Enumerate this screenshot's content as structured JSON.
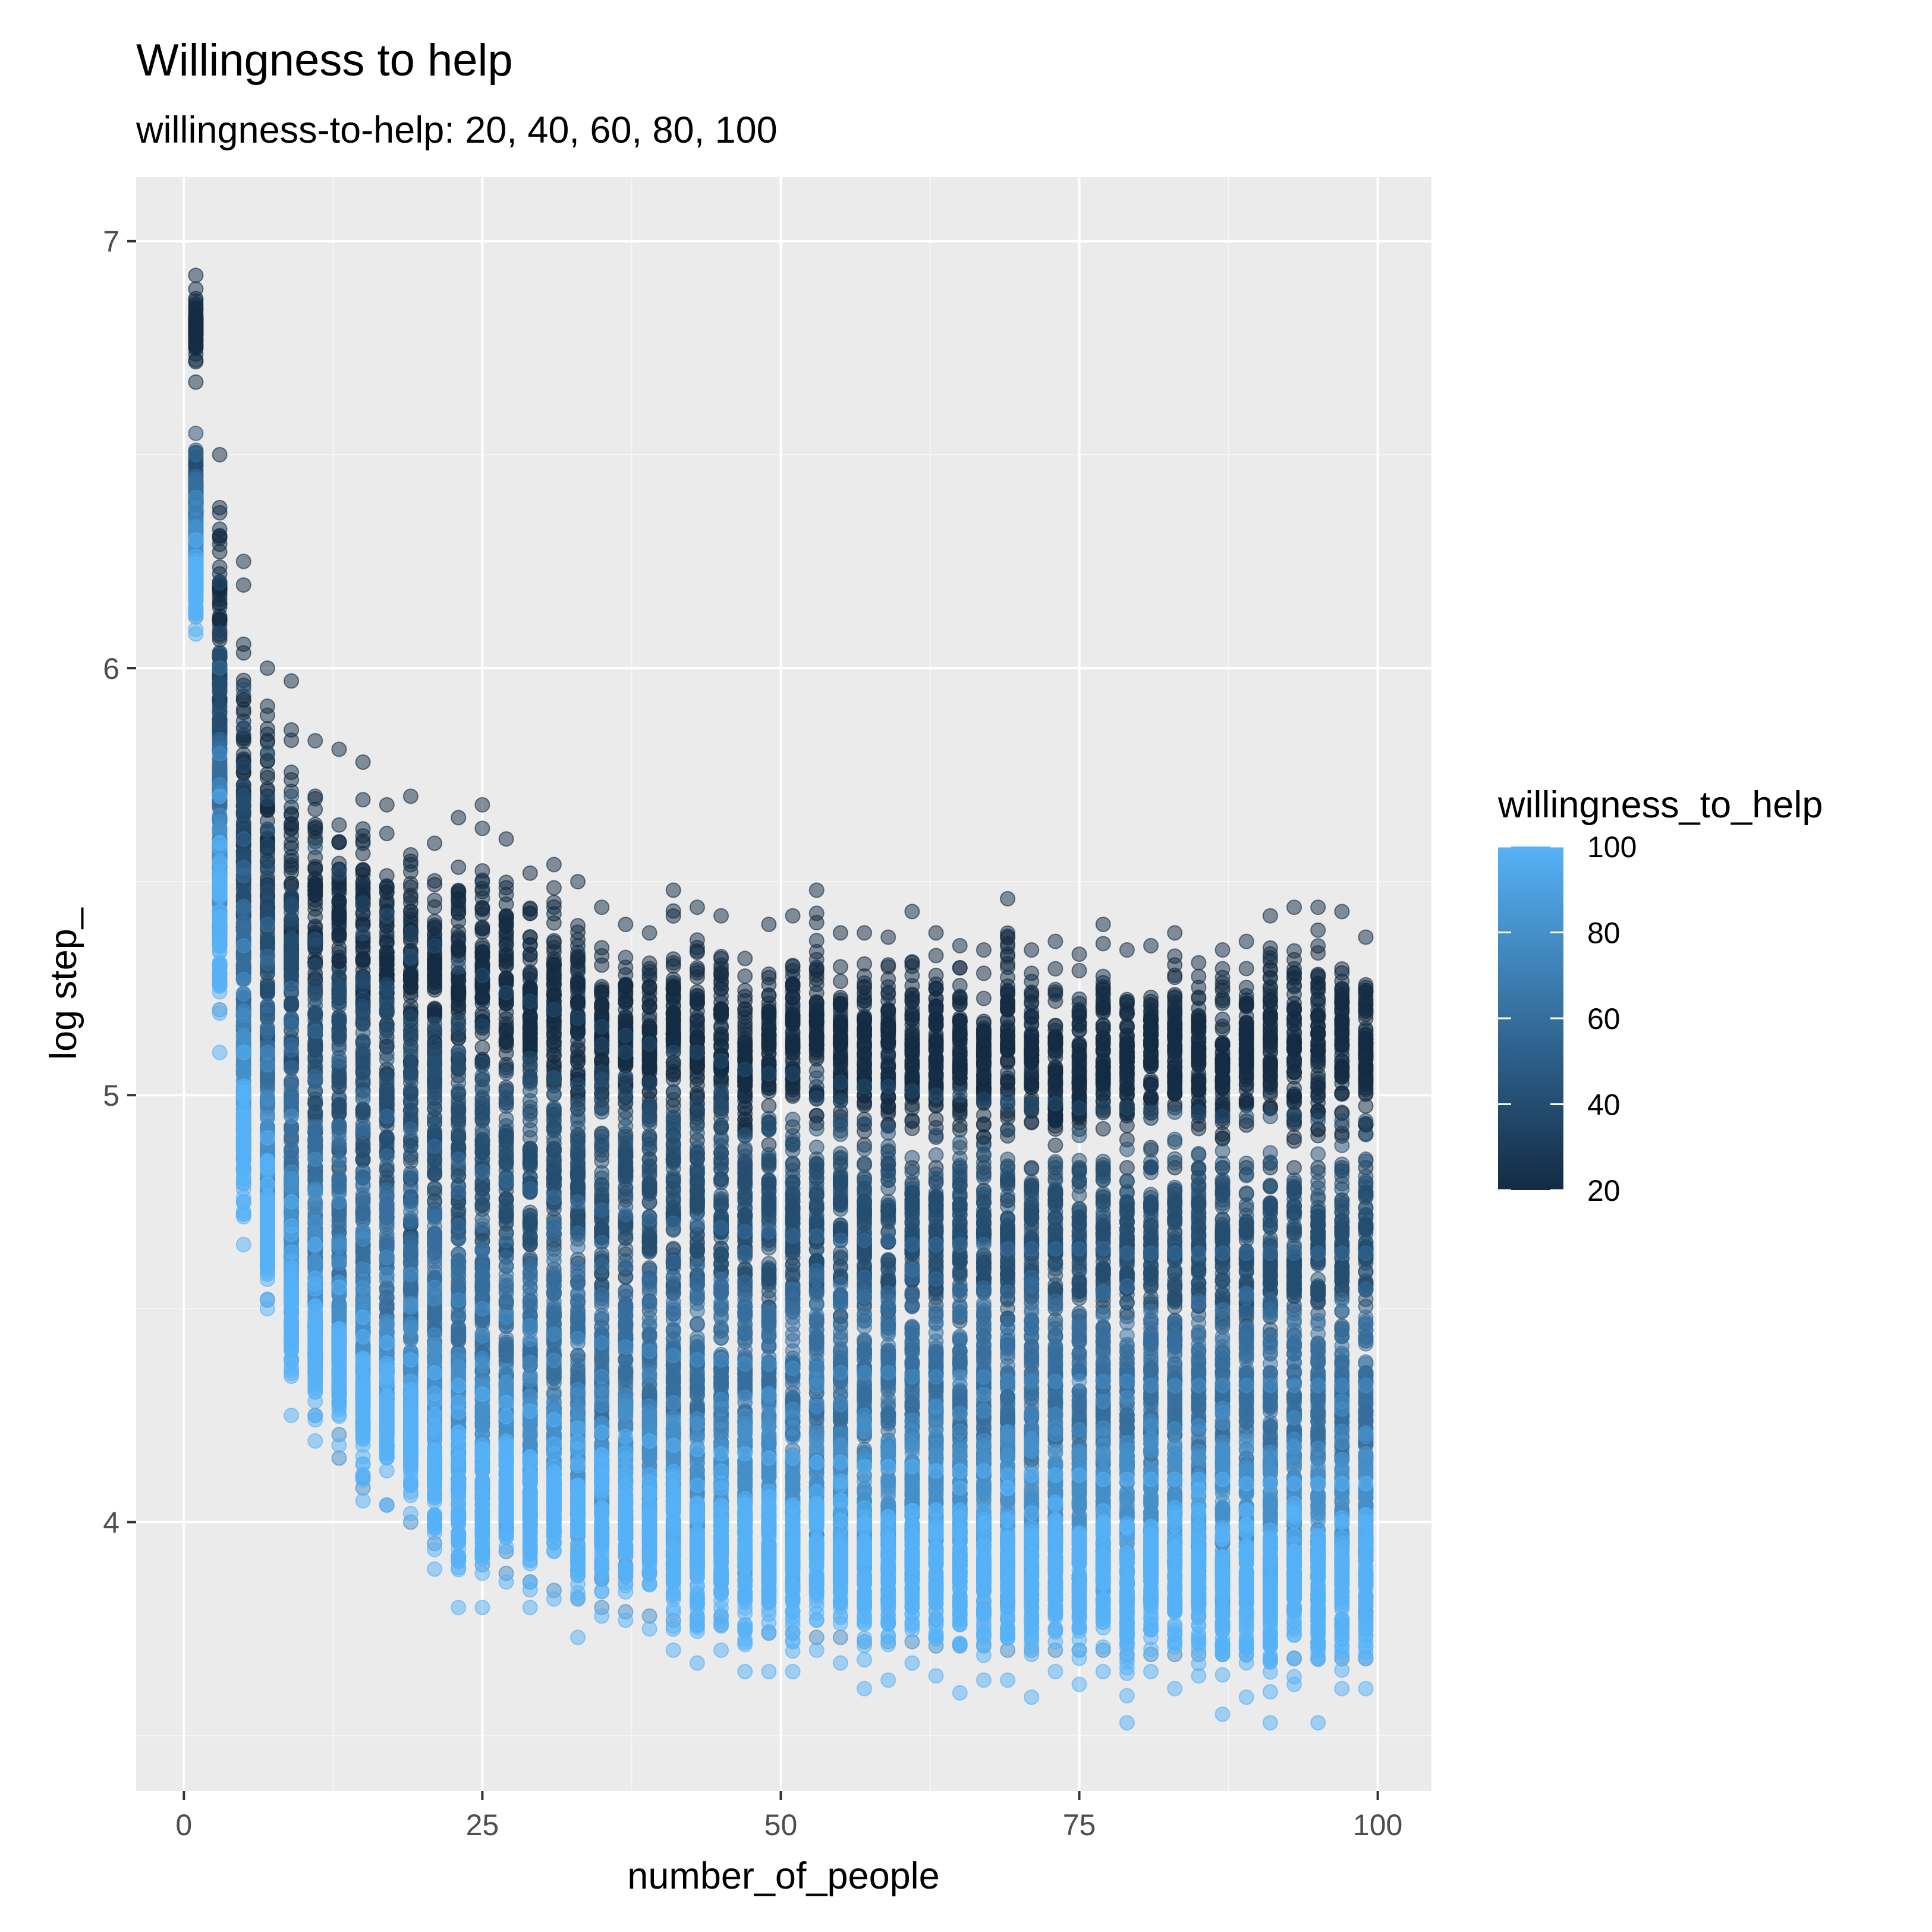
{
  "chart_data": {
    "type": "scatter",
    "title": "Willingness to help",
    "subtitle": "willingness-to-help: 20, 40, 60, 80, 100",
    "xlabel": "number_of_people",
    "ylabel": "log step_",
    "xlim": [
      -4,
      104.5
    ],
    "ylim": [
      3.37,
      7.15
    ],
    "x_ticks": [
      {
        "value": 0,
        "label": "0"
      },
      {
        "value": 25,
        "label": "25"
      },
      {
        "value": 50,
        "label": "50"
      },
      {
        "value": 75,
        "label": "75"
      },
      {
        "value": 100,
        "label": "100"
      }
    ],
    "y_ticks": [
      {
        "value": 4,
        "label": "4"
      },
      {
        "value": 5,
        "label": "5"
      },
      {
        "value": 6,
        "label": "6"
      },
      {
        "value": 7,
        "label": "7"
      }
    ],
    "x_values": [
      1,
      3,
      5,
      7,
      9,
      11,
      13,
      15,
      17,
      19,
      21,
      23,
      25,
      27,
      29,
      31,
      33,
      35,
      37,
      39,
      41,
      43,
      45,
      47,
      49,
      51,
      53,
      55,
      57,
      59,
      61,
      63,
      65,
      67,
      69,
      71,
      73,
      75,
      77,
      79,
      81,
      83,
      85,
      87,
      89,
      91,
      93,
      95,
      97,
      99
    ],
    "grid": true,
    "point_alpha": 0.5,
    "series": [
      {
        "willingness": 20,
        "y_min": [
          6.67,
          5.6,
          5.2,
          5.1,
          5.0,
          4.98,
          4.96,
          4.96,
          4.94,
          4.93,
          4.9,
          4.9,
          4.88,
          4.88,
          4.87,
          4.87,
          4.86,
          4.86,
          4.86,
          4.85,
          4.85,
          4.85,
          4.85,
          4.84,
          4.84,
          4.84,
          4.84,
          4.84,
          4.84,
          4.84,
          4.83,
          4.83,
          4.83,
          4.83,
          4.83,
          4.83,
          4.83,
          4.83,
          4.83,
          4.83,
          4.83,
          4.83,
          4.83,
          4.83,
          4.83,
          4.83,
          4.83,
          4.83,
          4.83,
          4.83
        ],
        "y_max": [
          6.92,
          6.5,
          6.25,
          6.0,
          5.97,
          5.83,
          5.81,
          5.78,
          5.68,
          5.7,
          5.59,
          5.65,
          5.68,
          5.6,
          5.52,
          5.54,
          5.5,
          5.44,
          5.4,
          5.38,
          5.48,
          5.44,
          5.42,
          5.32,
          5.4,
          5.42,
          5.48,
          5.38,
          5.38,
          5.37,
          5.43,
          5.38,
          5.35,
          5.34,
          5.46,
          5.34,
          5.36,
          5.33,
          5.4,
          5.34,
          5.35,
          5.38,
          5.31,
          5.34,
          5.36,
          5.42,
          5.44,
          5.44,
          5.43,
          5.37
        ]
      },
      {
        "willingness": 40,
        "y_min": [
          6.3,
          5.45,
          5.0,
          4.85,
          4.7,
          4.62,
          4.56,
          4.52,
          4.5,
          4.47,
          4.45,
          4.43,
          4.42,
          4.41,
          4.4,
          4.39,
          4.39,
          4.38,
          4.38,
          4.37,
          4.37,
          4.37,
          4.36,
          4.36,
          4.36,
          4.36,
          4.36,
          4.36,
          4.35,
          4.35,
          4.35,
          4.35,
          4.35,
          4.35,
          4.35,
          4.35,
          4.35,
          4.35,
          4.35,
          4.35,
          4.35,
          4.35,
          4.35,
          4.35,
          4.35,
          4.35,
          4.35,
          4.35,
          4.35,
          4.35
        ],
        "y_max": [
          6.55,
          6.2,
          5.95,
          5.8,
          5.7,
          5.58,
          5.52,
          5.45,
          5.42,
          5.38,
          5.35,
          5.3,
          5.28,
          5.24,
          5.22,
          5.2,
          5.18,
          5.16,
          5.14,
          5.12,
          5.1,
          5.1,
          5.08,
          5.06,
          5.05,
          5.05,
          5.04,
          5.03,
          5.02,
          5.02,
          5.01,
          5.0,
          5.0,
          4.99,
          4.99,
          4.98,
          4.98,
          4.97,
          4.97,
          4.97,
          4.96,
          4.96,
          4.96,
          4.95,
          4.95,
          4.95,
          4.95,
          4.94,
          4.94,
          4.94
        ]
      },
      {
        "willingness": 60,
        "y_min": [
          6.2,
          5.3,
          4.85,
          4.6,
          4.45,
          4.35,
          4.28,
          4.22,
          4.18,
          4.15,
          4.12,
          4.1,
          4.08,
          4.06,
          4.05,
          4.04,
          4.03,
          4.02,
          4.01,
          4.0,
          4.0,
          3.99,
          3.99,
          3.98,
          3.98,
          3.98,
          3.97,
          3.97,
          3.97,
          3.97,
          3.96,
          3.96,
          3.96,
          3.96,
          3.96,
          3.96,
          3.96,
          3.95,
          3.95,
          3.95,
          3.95,
          3.95,
          3.95,
          3.95,
          3.95,
          3.95,
          3.95,
          3.95,
          3.95,
          3.95
        ],
        "y_max": [
          6.5,
          6.0,
          5.6,
          5.4,
          5.25,
          5.15,
          5.08,
          5.0,
          4.95,
          4.92,
          4.88,
          4.85,
          4.82,
          4.8,
          4.78,
          4.76,
          4.75,
          4.73,
          4.72,
          4.71,
          4.7,
          4.7,
          4.69,
          4.68,
          4.68,
          4.67,
          4.67,
          4.66,
          4.66,
          4.66,
          4.65,
          4.65,
          4.65,
          4.65,
          4.64,
          4.64,
          4.64,
          4.64,
          4.64,
          4.63,
          4.63,
          4.63,
          4.63,
          4.63,
          4.63,
          4.63,
          4.63,
          4.63,
          4.63,
          4.63
        ]
      },
      {
        "willingness": 80,
        "y_min": [
          6.12,
          5.2,
          4.75,
          4.52,
          4.38,
          4.25,
          4.15,
          4.08,
          4.04,
          4.0,
          3.95,
          3.92,
          3.9,
          3.88,
          3.86,
          3.84,
          3.82,
          3.8,
          3.79,
          3.78,
          3.77,
          3.76,
          3.76,
          3.75,
          3.74,
          3.74,
          3.73,
          3.73,
          3.72,
          3.72,
          3.72,
          3.71,
          3.71,
          3.71,
          3.7,
          3.7,
          3.7,
          3.7,
          3.7,
          3.69,
          3.69,
          3.69,
          3.69,
          3.69,
          3.69,
          3.68,
          3.68,
          3.68,
          3.68,
          3.68
        ],
        "y_max": [
          6.4,
          5.8,
          5.35,
          5.1,
          4.95,
          4.85,
          4.75,
          4.68,
          4.62,
          4.58,
          4.55,
          4.52,
          4.5,
          4.48,
          4.46,
          4.44,
          4.43,
          4.42,
          4.41,
          4.4,
          4.39,
          4.38,
          4.38,
          4.37,
          4.37,
          4.36,
          4.36,
          4.35,
          4.35,
          4.35,
          4.34,
          4.34,
          4.34,
          4.34,
          4.33,
          4.33,
          4.33,
          4.33,
          4.33,
          4.33,
          4.32,
          4.32,
          4.32,
          4.32,
          4.32,
          4.32,
          4.32,
          4.32,
          4.32,
          4.32
        ]
      },
      {
        "willingness": 100,
        "y_min": [
          6.08,
          5.1,
          4.65,
          4.5,
          4.25,
          4.19,
          4.18,
          4.05,
          4.04,
          4.02,
          3.89,
          3.8,
          3.8,
          3.86,
          3.8,
          3.82,
          3.73,
          3.78,
          3.77,
          3.75,
          3.7,
          3.67,
          3.7,
          3.65,
          3.65,
          3.65,
          3.7,
          3.67,
          3.61,
          3.63,
          3.67,
          3.64,
          3.6,
          3.63,
          3.63,
          3.59,
          3.65,
          3.62,
          3.65,
          3.53,
          3.65,
          3.61,
          3.64,
          3.55,
          3.59,
          3.53,
          3.62,
          3.53,
          3.61,
          3.61
        ],
        "y_max": [
          6.3,
          5.7,
          5.1,
          4.9,
          4.75,
          4.65,
          4.55,
          4.48,
          4.42,
          4.38,
          4.35,
          4.32,
          4.3,
          4.28,
          4.26,
          4.24,
          4.22,
          4.21,
          4.2,
          4.19,
          4.18,
          4.17,
          4.16,
          4.16,
          4.15,
          4.15,
          4.14,
          4.14,
          4.13,
          4.13,
          4.13,
          4.12,
          4.12,
          4.12,
          4.11,
          4.11,
          4.11,
          4.11,
          4.1,
          4.1,
          4.1,
          4.1,
          4.1,
          4.1,
          4.09,
          4.09,
          4.09,
          4.09,
          4.09,
          4.09
        ]
      }
    ],
    "legend": {
      "title": "willingness_to_help",
      "position": "right",
      "labels": [
        "100",
        "80",
        "60",
        "40",
        "20"
      ],
      "values": [
        100,
        80,
        60,
        40,
        20
      ],
      "color_low": "#132b43",
      "color_high": "#56b1f7"
    },
    "colors": {
      "panel_background": "#ebebeb",
      "grid_major": "#ffffff",
      "grid_minor": "#f5f5f5",
      "text": "#000000",
      "tick_text": "#4d4d4d"
    }
  }
}
